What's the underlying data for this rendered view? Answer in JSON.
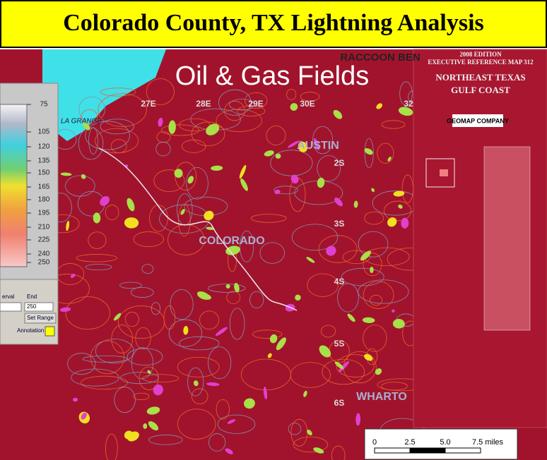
{
  "title": "Colorado County, TX Lightning Analysis",
  "map": {
    "overlay_title": "Oil & Gas Fields",
    "township_columns": [
      "27E",
      "28E",
      "29E",
      "30E",
      "32"
    ],
    "township_rows": [
      "2S",
      "3S",
      "4S",
      "5S",
      "6S"
    ],
    "counties": [
      "AUSTIN",
      "COLORADO",
      "WHARTO"
    ],
    "places": [
      "RACCOON BEN",
      "LA GRANGE"
    ]
  },
  "map_legend": {
    "edition": "2008 EDITION",
    "subtitle": "EXECUTIVE REFERENCE MAP 312",
    "region": [
      "NORTHEAST TEXAS",
      "GULF COAST"
    ],
    "publisher": "GEOMAP COMPANY"
  },
  "color_scale": {
    "labels": [
      "75",
      "105",
      "120",
      "135",
      "150",
      "165",
      "180",
      "195",
      "210",
      "225",
      "240",
      "250"
    ]
  },
  "range_panel": {
    "interval_label": "erval",
    "end_label": "End",
    "end_value": "250",
    "button": "Set Range",
    "annotation_label": "Annotation"
  },
  "scale_bar": {
    "labels": [
      "0",
      "2.5",
      "5.0",
      "7.5 miles"
    ]
  }
}
